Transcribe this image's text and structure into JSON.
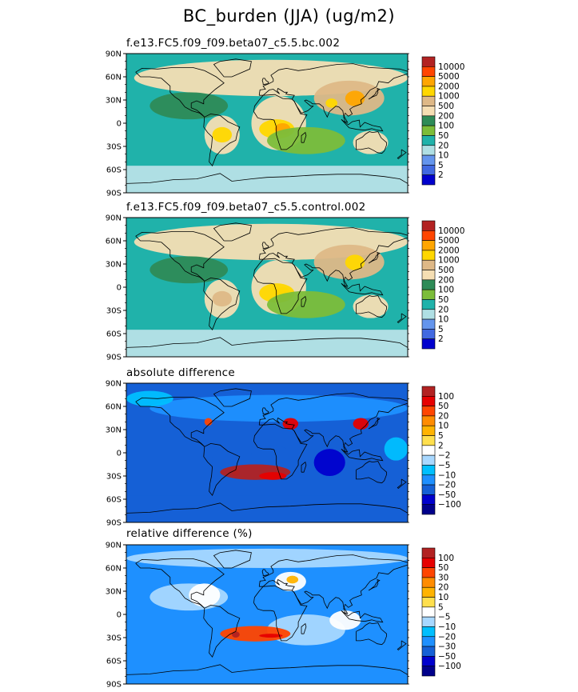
{
  "title": "BC_burden (JJA) (ug/m2)",
  "lat_ticks": [
    "90N",
    "60N",
    "30N",
    "0",
    "30S",
    "60S",
    "90S"
  ],
  "chart_data": [
    {
      "type": "heatmap",
      "title": "f.e13.FC5.f09_f09.beta07_c5.5.bc.002",
      "lat_ticks": [
        "90N",
        "60N",
        "30N",
        "0",
        "30S",
        "60S",
        "90S"
      ],
      "levels": [
        "10000",
        "5000",
        "2000",
        "1000",
        "500",
        "200",
        "100",
        "50",
        "20",
        "10",
        "5",
        "2"
      ],
      "colors": [
        "#b22222",
        "#ff4500",
        "#ffa500",
        "#ffd700",
        "#deb887",
        "#f5deb3",
        "#2e8b57",
        "#7cbd3a",
        "#20b2aa",
        "#afdfe4",
        "#6495ed",
        "#4169e1",
        "#0000cd"
      ],
      "background_color": "#20b2aa",
      "polar_color": "#afdfe4",
      "regions": [
        {
          "lon": [
            -170,
            180
          ],
          "lat": [
            35,
            82
          ],
          "level": 200
        },
        {
          "lon": [
            -150,
            -50
          ],
          "lat": [
            5,
            40
          ],
          "level": 100
        },
        {
          "lon": [
            -80,
            -35
          ],
          "lat": [
            -40,
            10
          ],
          "level": 200
        },
        {
          "lon": [
            -70,
            -45
          ],
          "lat": [
            -25,
            -5
          ],
          "level": 1000
        },
        {
          "lon": [
            -20,
            50
          ],
          "lat": [
            -35,
            35
          ],
          "level": 200
        },
        {
          "lon": [
            -10,
            35
          ],
          "lat": [
            -20,
            5
          ],
          "level": 1000
        },
        {
          "lon": [
            10,
            30
          ],
          "lat": [
            -15,
            0
          ],
          "level": 2000
        },
        {
          "lon": [
            60,
            150
          ],
          "lat": [
            10,
            55
          ],
          "level": 500
        },
        {
          "lon": [
            100,
            125
          ],
          "lat": [
            22,
            42
          ],
          "level": 2000
        },
        {
          "lon": [
            75,
            90
          ],
          "lat": [
            20,
            32
          ],
          "level": 1000
        },
        {
          "lon": [
            0,
            100
          ],
          "lat": [
            -40,
            -5
          ],
          "level": 50
        },
        {
          "lon": [
            110,
            155
          ],
          "lat": [
            -40,
            -10
          ],
          "level": 200
        }
      ]
    },
    {
      "type": "heatmap",
      "title": "f.e13.FC5.f09_f09.beta07_c5.5.control.002",
      "lat_ticks": [
        "90N",
        "60N",
        "30N",
        "0",
        "30S",
        "60S",
        "90S"
      ],
      "levels": [
        "10000",
        "5000",
        "2000",
        "1000",
        "500",
        "200",
        "100",
        "50",
        "20",
        "10",
        "5",
        "2"
      ],
      "colors": [
        "#b22222",
        "#ff4500",
        "#ffa500",
        "#ffd700",
        "#deb887",
        "#f5deb3",
        "#2e8b57",
        "#7cbd3a",
        "#20b2aa",
        "#afdfe4",
        "#6495ed",
        "#4169e1",
        "#0000cd"
      ],
      "background_color": "#20b2aa",
      "polar_color": "#afdfe4",
      "regions": [
        {
          "lon": [
            -170,
            180
          ],
          "lat": [
            35,
            82
          ],
          "level": 200
        },
        {
          "lon": [
            -150,
            -50
          ],
          "lat": [
            5,
            40
          ],
          "level": 100
        },
        {
          "lon": [
            -80,
            -35
          ],
          "lat": [
            -40,
            10
          ],
          "level": 200
        },
        {
          "lon": [
            -70,
            -45
          ],
          "lat": [
            -25,
            -5
          ],
          "level": 500
        },
        {
          "lon": [
            -20,
            50
          ],
          "lat": [
            -35,
            35
          ],
          "level": 200
        },
        {
          "lon": [
            -10,
            35
          ],
          "lat": [
            -20,
            5
          ],
          "level": 1000
        },
        {
          "lon": [
            10,
            30
          ],
          "lat": [
            -15,
            0
          ],
          "level": 1000
        },
        {
          "lon": [
            60,
            150
          ],
          "lat": [
            10,
            55
          ],
          "level": 500
        },
        {
          "lon": [
            100,
            125
          ],
          "lat": [
            22,
            42
          ],
          "level": 1000
        },
        {
          "lon": [
            0,
            100
          ],
          "lat": [
            -40,
            -5
          ],
          "level": 50
        },
        {
          "lon": [
            110,
            155
          ],
          "lat": [
            -40,
            -10
          ],
          "level": 200
        }
      ]
    },
    {
      "type": "heatmap",
      "title": "absolute difference",
      "lat_ticks": [
        "90N",
        "60N",
        "30N",
        "0",
        "30S",
        "60S",
        "90S"
      ],
      "levels": [
        "100",
        "50",
        "20",
        "10",
        "5",
        "2",
        "-2",
        "-5",
        "-10",
        "-20",
        "-50",
        "-100"
      ],
      "colors": [
        "#b22222",
        "#e60000",
        "#ff4500",
        "#ff8c00",
        "#ffb300",
        "#ffdf4d",
        "#ffffff",
        "#a8d8ff",
        "#00bfff",
        "#1e90ff",
        "#1560d6",
        "#0000cd",
        "#00008b"
      ],
      "background_color": "#1560d6",
      "polar_color": "#1560d6",
      "regions": [
        {
          "lon": [
            -150,
            180
          ],
          "lat": [
            40,
            75
          ],
          "level": -20
        },
        {
          "lon": [
            -180,
            -120
          ],
          "lat": [
            60,
            80
          ],
          "level": -10
        },
        {
          "lon": [
            -70,
            -40
          ],
          "lat": [
            -20,
            5
          ],
          "level": -50
        },
        {
          "lon": [
            -20,
            30
          ],
          "lat": [
            -15,
            10
          ],
          "level": -50
        },
        {
          "lon": [
            -60,
            30
          ],
          "lat": [
            -35,
            -15
          ],
          "level": 100
        },
        {
          "lon": [
            -45,
            -35
          ],
          "lat": [
            -30,
            -20
          ],
          "level": 100
        },
        {
          "lon": [
            -10,
            25
          ],
          "lat": [
            -35,
            -25
          ],
          "level": 50
        },
        {
          "lon": [
            20,
            40
          ],
          "lat": [
            30,
            45
          ],
          "level": 50
        },
        {
          "lon": [
            110,
            130
          ],
          "lat": [
            30,
            45
          ],
          "level": 50
        },
        {
          "lon": [
            -80,
            -70
          ],
          "lat": [
            35,
            45
          ],
          "level": 20
        },
        {
          "lon": [
            60,
            100
          ],
          "lat": [
            -30,
            5
          ],
          "level": -100
        },
        {
          "lon": [
            150,
            180
          ],
          "lat": [
            -10,
            20
          ],
          "level": -10
        }
      ]
    },
    {
      "type": "heatmap",
      "title": "relative difference (%)",
      "lat_ticks": [
        "90N",
        "60N",
        "30N",
        "0",
        "30S",
        "60S",
        "90S"
      ],
      "levels": [
        "100",
        "50",
        "30",
        "20",
        "10",
        "5",
        "-5",
        "-10",
        "-20",
        "-30",
        "-50",
        "-100"
      ],
      "colors": [
        "#b22222",
        "#e60000",
        "#ff4500",
        "#ff8c00",
        "#ffb300",
        "#ffdf4d",
        "#ffffff",
        "#a8d8ff",
        "#00bfff",
        "#1e90ff",
        "#1560d6",
        "#0000cd",
        "#00008b"
      ],
      "background_color": "#1e90ff",
      "polar_color": "#1e90ff",
      "regions": [
        {
          "lon": [
            -180,
            180
          ],
          "lat": [
            60,
            85
          ],
          "level": -10
        },
        {
          "lon": [
            -150,
            -50
          ],
          "lat": [
            5,
            40
          ],
          "level": -10
        },
        {
          "lon": [
            0,
            100
          ],
          "lat": [
            -40,
            0
          ],
          "level": -10
        },
        {
          "lon": [
            -100,
            -60
          ],
          "lat": [
            10,
            40
          ],
          "level": -5
        },
        {
          "lon": [
            10,
            50
          ],
          "lat": [
            30,
            55
          ],
          "level": -5
        },
        {
          "lon": [
            80,
            120
          ],
          "lat": [
            -20,
            5
          ],
          "level": -5
        },
        {
          "lon": [
            -60,
            30
          ],
          "lat": [
            -35,
            -15
          ],
          "level": 30
        },
        {
          "lon": [
            -45,
            -35
          ],
          "lat": [
            -30,
            -22
          ],
          "level": 100
        },
        {
          "lon": [
            -10,
            20
          ],
          "lat": [
            -30,
            -25
          ],
          "level": 50
        },
        {
          "lon": [
            25,
            40
          ],
          "lat": [
            40,
            50
          ],
          "level": 10
        }
      ]
    }
  ]
}
